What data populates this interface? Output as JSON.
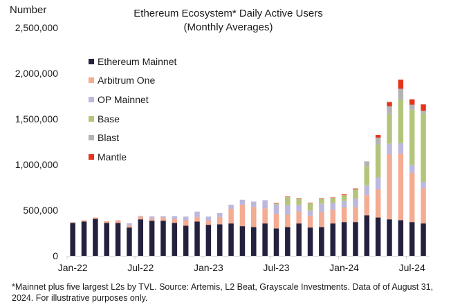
{
  "chart_data": {
    "type": "bar",
    "stacked": true,
    "title": "Ethereum Ecosystem* Daily Active Users",
    "subtitle": "(Monthly Averages)",
    "ylabel": "Number",
    "xlabel": "",
    "ylim": [
      0,
      2500000
    ],
    "yticks": [
      0,
      500000,
      1000000,
      1500000,
      2000000,
      2500000
    ],
    "ytick_labels": [
      "0",
      "500,000",
      "1,000,000",
      "1,500,000",
      "2,000,000",
      "2,500,000"
    ],
    "xtick_labels": [
      {
        "index": 0,
        "label": "Jan-22"
      },
      {
        "index": 6,
        "label": "Jul-22"
      },
      {
        "index": 12,
        "label": "Jan-23"
      },
      {
        "index": 18,
        "label": "Jul-23"
      },
      {
        "index": 24,
        "label": "Jan-24"
      },
      {
        "index": 30,
        "label": "Jul-24"
      }
    ],
    "grid": false,
    "legend_position": "top-left",
    "categories": [
      "Jan-22",
      "Feb-22",
      "Mar-22",
      "Apr-22",
      "May-22",
      "Jun-22",
      "Jul-22",
      "Aug-22",
      "Sep-22",
      "Oct-22",
      "Nov-22",
      "Dec-22",
      "Jan-23",
      "Feb-23",
      "Mar-23",
      "Apr-23",
      "May-23",
      "Jun-23",
      "Jul-23",
      "Aug-23",
      "Sep-23",
      "Oct-23",
      "Nov-23",
      "Dec-23",
      "Jan-24",
      "Feb-24",
      "Mar-24",
      "Apr-24",
      "May-24",
      "Jun-24",
      "Jul-24",
      "Aug-24"
    ],
    "series": [
      {
        "name": "Ethereum Mainnet",
        "color": "#24213f",
        "values": [
          360000,
          375000,
          405000,
          360000,
          360000,
          310000,
          400000,
          385000,
          385000,
          360000,
          330000,
          375000,
          340000,
          345000,
          355000,
          325000,
          315000,
          355000,
          300000,
          315000,
          355000,
          310000,
          315000,
          355000,
          370000,
          370000,
          445000,
          420000,
          400000,
          390000,
          370000,
          355000
        ]
      },
      {
        "name": "Arbitrum One",
        "color": "#f3ab91",
        "values": [
          8000,
          15000,
          15000,
          20000,
          30000,
          22000,
          30000,
          25000,
          35000,
          45000,
          60000,
          50000,
          45000,
          80000,
          160000,
          235000,
          220000,
          165000,
          160000,
          135000,
          130000,
          130000,
          165000,
          150000,
          160000,
          165000,
          220000,
          310000,
          710000,
          730000,
          540000,
          385000
        ]
      },
      {
        "name": "OP Mainnet",
        "color": "#bcb8dd",
        "values": [
          0,
          0,
          0,
          0,
          0,
          25000,
          8000,
          22000,
          15000,
          30000,
          40000,
          60000,
          45000,
          45000,
          45000,
          55000,
          60000,
          90000,
          105000,
          105000,
          75000,
          55000,
          90000,
          75000,
          70000,
          90000,
          105000,
          130000,
          120000,
          115000,
          85000,
          70000
        ]
      },
      {
        "name": "Base",
        "color": "#b3c57a",
        "values": [
          0,
          0,
          0,
          0,
          0,
          0,
          0,
          0,
          0,
          0,
          0,
          0,
          0,
          0,
          0,
          0,
          0,
          0,
          8000,
          90000,
          65000,
          80000,
          55000,
          55000,
          65000,
          105000,
          210000,
          360000,
          325000,
          475000,
          605000,
          750000
        ]
      },
      {
        "name": "Blast",
        "color": "#b3b3b3",
        "values": [
          0,
          0,
          0,
          0,
          0,
          0,
          0,
          0,
          0,
          0,
          0,
          0,
          0,
          0,
          0,
          0,
          0,
          0,
          0,
          0,
          0,
          0,
          0,
          0,
          0,
          0,
          55000,
          75000,
          85000,
          120000,
          55000,
          30000
        ]
      },
      {
        "name": "Mantle",
        "color": "#e4321b",
        "values": [
          0,
          0,
          0,
          0,
          0,
          0,
          0,
          0,
          0,
          0,
          0,
          0,
          0,
          0,
          0,
          0,
          0,
          0,
          5000,
          5000,
          5000,
          5000,
          5000,
          5000,
          8000,
          8000,
          0,
          30000,
          45000,
          100000,
          60000,
          70000
        ]
      }
    ]
  },
  "footnote": "*Mainnet plus five largest L2s by TVL. Source: Artemis, L2 Beat, Grayscale Investments. Data of of August 31, 2024. For illustrative purposes only."
}
